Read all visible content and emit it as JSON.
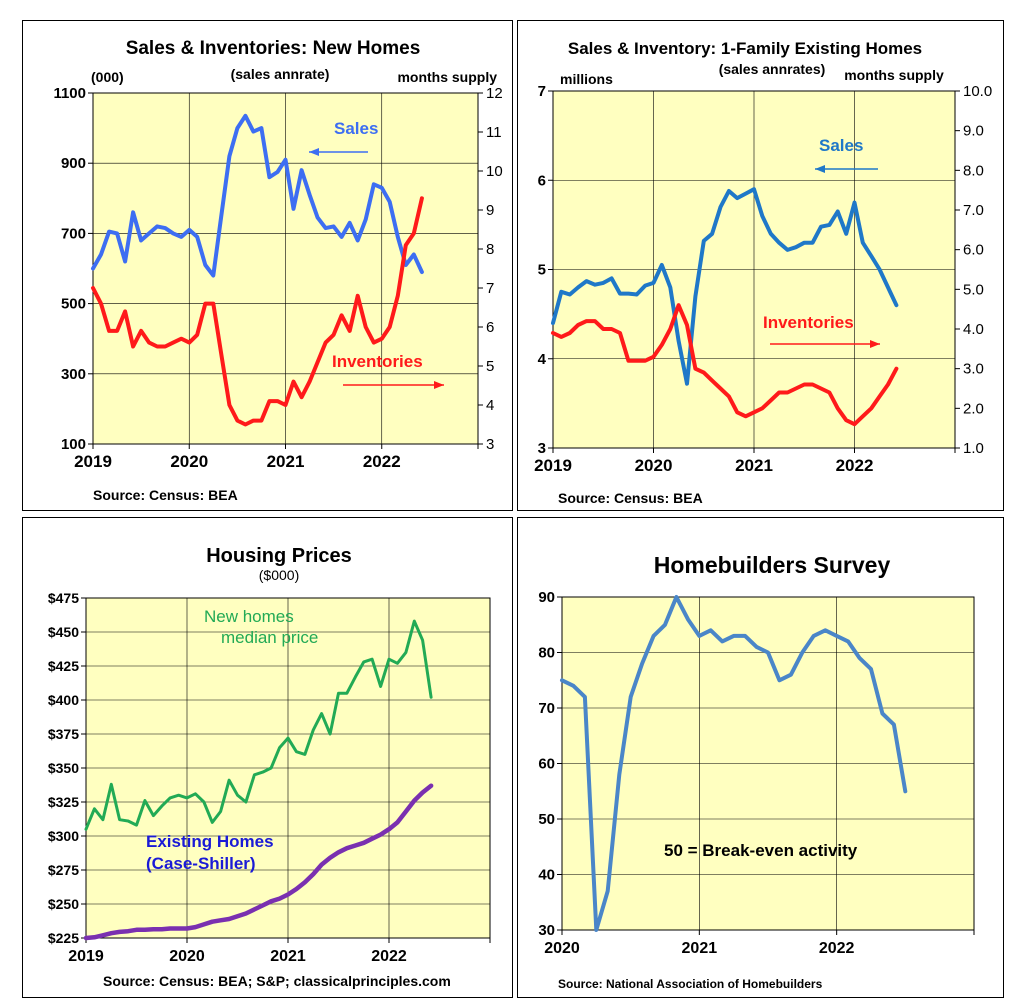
{
  "chart_data": [
    {
      "type": "line",
      "title": "Sales & Inventories:  New Homes",
      "left_unit": "(000)",
      "subtitle": "(sales annrate)",
      "right_unit": "months supply",
      "source": "Source: Census: BEA",
      "x_ticks": [
        "2019",
        "2020",
        "2021",
        "2022"
      ],
      "xlim": [
        2019,
        2023
      ],
      "y_left": {
        "lim": [
          100,
          1100
        ],
        "ticks": [
          "1100",
          "900",
          "700",
          "500",
          "300",
          "100"
        ]
      },
      "y_right": {
        "lim": [
          3,
          12
        ],
        "ticks": [
          "12",
          "11",
          "10",
          "9",
          "8",
          "7",
          "6",
          "5",
          "4",
          "3"
        ]
      },
      "series": [
        {
          "name": "Sales",
          "axis": "left",
          "color": "#3d6ef2",
          "x": [
            2019.0,
            2019.083,
            2019.167,
            2019.25,
            2019.333,
            2019.417,
            2019.5,
            2019.583,
            2019.667,
            2019.75,
            2019.833,
            2019.917,
            2020.0,
            2020.083,
            2020.167,
            2020.25,
            2020.333,
            2020.417,
            2020.5,
            2020.583,
            2020.667,
            2020.75,
            2020.833,
            2020.917,
            2021.0,
            2021.083,
            2021.167,
            2021.25,
            2021.333,
            2021.417,
            2021.5,
            2021.583,
            2021.667,
            2021.75,
            2021.833,
            2021.917,
            2022.0,
            2022.083,
            2022.167,
            2022.25,
            2022.333,
            2022.417
          ],
          "values": [
            600,
            640,
            705,
            700,
            620,
            760,
            680,
            700,
            720,
            715,
            700,
            690,
            710,
            690,
            610,
            580,
            750,
            920,
            1000,
            1035,
            990,
            1000,
            860,
            875,
            910,
            770,
            880,
            810,
            745,
            715,
            720,
            690,
            730,
            680,
            740,
            840,
            830,
            790,
            690,
            610,
            640,
            590
          ]
        },
        {
          "name": "Inventories",
          "axis": "right",
          "color": "#ff1a1a",
          "x": [
            2019.0,
            2019.083,
            2019.167,
            2019.25,
            2019.333,
            2019.417,
            2019.5,
            2019.583,
            2019.667,
            2019.75,
            2019.833,
            2019.917,
            2020.0,
            2020.083,
            2020.167,
            2020.25,
            2020.333,
            2020.417,
            2020.5,
            2020.583,
            2020.667,
            2020.75,
            2020.833,
            2020.917,
            2021.0,
            2021.083,
            2021.167,
            2021.25,
            2021.333,
            2021.417,
            2021.5,
            2021.583,
            2021.667,
            2021.75,
            2021.833,
            2021.917,
            2022.0,
            2022.083,
            2022.167,
            2022.25,
            2022.333,
            2022.417
          ],
          "values": [
            7.0,
            6.6,
            5.9,
            5.9,
            6.4,
            5.5,
            5.9,
            5.6,
            5.5,
            5.5,
            5.6,
            5.7,
            5.6,
            5.8,
            6.6,
            6.6,
            5.3,
            4.0,
            3.6,
            3.5,
            3.6,
            3.6,
            4.1,
            4.1,
            4.0,
            4.6,
            4.2,
            4.6,
            5.1,
            5.6,
            5.8,
            6.3,
            5.9,
            6.8,
            6.0,
            5.6,
            5.7,
            6.0,
            6.8,
            8.1,
            8.4,
            9.3
          ]
        }
      ],
      "annotations": [
        {
          "text": "Sales",
          "color": "#3d6ef2",
          "arrow": "left"
        },
        {
          "text": "Inventories",
          "color": "#ff1a1a",
          "arrow": "right"
        }
      ],
      "grid": true
    },
    {
      "type": "line",
      "title": "Sales & Inventory: 1-Family Existing Homes",
      "left_unit": "millions",
      "subtitle": "(sales annrates)",
      "right_unit": "months supply",
      "source": "Source: Census: BEA",
      "x_ticks": [
        "2019",
        "2020",
        "2021",
        "2022"
      ],
      "xlim": [
        2019,
        2023
      ],
      "y_left": {
        "lim": [
          3,
          7
        ],
        "ticks": [
          "7",
          "6",
          "5",
          "4",
          "3"
        ]
      },
      "y_right": {
        "lim": [
          1.0,
          10.0
        ],
        "ticks": [
          "10.0",
          "9.0",
          "8.0",
          "7.0",
          "6.0",
          "5.0",
          "4.0",
          "3.0",
          "2.0",
          "1.0"
        ]
      },
      "series": [
        {
          "name": "Sales",
          "axis": "left",
          "color": "#1f78c8",
          "x": [
            2019.0,
            2019.083,
            2019.167,
            2019.25,
            2019.333,
            2019.417,
            2019.5,
            2019.583,
            2019.667,
            2019.75,
            2019.833,
            2019.917,
            2020.0,
            2020.083,
            2020.167,
            2020.25,
            2020.333,
            2020.417,
            2020.5,
            2020.583,
            2020.667,
            2020.75,
            2020.833,
            2020.917,
            2021.0,
            2021.083,
            2021.167,
            2021.25,
            2021.333,
            2021.417,
            2021.5,
            2021.583,
            2021.667,
            2021.75,
            2021.833,
            2021.917,
            2022.0,
            2022.083,
            2022.167,
            2022.25,
            2022.333,
            2022.417
          ],
          "values": [
            4.4,
            4.75,
            4.72,
            4.8,
            4.87,
            4.83,
            4.85,
            4.9,
            4.73,
            4.73,
            4.72,
            4.82,
            4.85,
            5.05,
            4.8,
            4.2,
            3.72,
            4.7,
            5.32,
            5.4,
            5.7,
            5.88,
            5.8,
            5.85,
            5.9,
            5.6,
            5.4,
            5.3,
            5.22,
            5.25,
            5.3,
            5.3,
            5.48,
            5.5,
            5.65,
            5.4,
            5.75,
            5.3,
            5.15,
            5.0,
            4.8,
            4.6
          ]
        },
        {
          "name": "Inventories",
          "axis": "right",
          "color": "#ff1a1a",
          "x": [
            2019.0,
            2019.083,
            2019.167,
            2019.25,
            2019.333,
            2019.417,
            2019.5,
            2019.583,
            2019.667,
            2019.75,
            2019.833,
            2019.917,
            2020.0,
            2020.083,
            2020.167,
            2020.25,
            2020.333,
            2020.417,
            2020.5,
            2020.583,
            2020.667,
            2020.75,
            2020.833,
            2020.917,
            2021.0,
            2021.083,
            2021.167,
            2021.25,
            2021.333,
            2021.417,
            2021.5,
            2021.583,
            2021.667,
            2021.75,
            2021.833,
            2021.917,
            2022.0,
            2022.083,
            2022.167,
            2022.25,
            2022.333,
            2022.417
          ],
          "values": [
            3.9,
            3.8,
            3.9,
            4.1,
            4.2,
            4.2,
            4.0,
            4.0,
            3.9,
            3.2,
            3.2,
            3.2,
            3.3,
            3.6,
            4.0,
            4.6,
            4.1,
            3.0,
            2.9,
            2.7,
            2.5,
            2.3,
            1.9,
            1.8,
            1.9,
            2.0,
            2.2,
            2.4,
            2.4,
            2.5,
            2.6,
            2.6,
            2.5,
            2.4,
            2.0,
            1.7,
            1.6,
            1.8,
            2.0,
            2.3,
            2.6,
            3.0
          ]
        }
      ],
      "annotations": [
        {
          "text": "Sales",
          "color": "#1f78c8",
          "arrow": "left"
        },
        {
          "text": "Inventories",
          "color": "#ff1a1a",
          "arrow": "right"
        }
      ],
      "grid": true
    },
    {
      "type": "line",
      "title": "Housing Prices",
      "subtitle": "($000)",
      "source": "Source: Census: BEA; S&P; classicalprinciples.com",
      "x_ticks": [
        "2019",
        "2020",
        "2021",
        "2022"
      ],
      "xlim": [
        2019,
        2023
      ],
      "y_left": {
        "lim": [
          225,
          475
        ],
        "ticks": [
          "$475",
          "$450",
          "$425",
          "$400",
          "$375",
          "$350",
          "$325",
          "$300",
          "$275",
          "$250",
          "$225"
        ]
      },
      "series": [
        {
          "name": "New homes median price",
          "axis": "left",
          "color": "#22aa55",
          "x": [
            2019.0,
            2019.083,
            2019.167,
            2019.25,
            2019.333,
            2019.417,
            2019.5,
            2019.583,
            2019.667,
            2019.75,
            2019.833,
            2019.917,
            2020.0,
            2020.083,
            2020.167,
            2020.25,
            2020.333,
            2020.417,
            2020.5,
            2020.583,
            2020.667,
            2020.75,
            2020.833,
            2020.917,
            2021.0,
            2021.083,
            2021.167,
            2021.25,
            2021.333,
            2021.417,
            2021.5,
            2021.583,
            2021.667,
            2021.75,
            2021.833,
            2021.917,
            2022.0,
            2022.083,
            2022.167,
            2022.25,
            2022.333,
            2022.417
          ],
          "values": [
            305,
            320,
            312,
            338,
            312,
            311,
            308,
            326,
            315,
            322,
            328,
            330,
            328,
            331,
            325,
            310,
            318,
            341,
            330,
            325,
            345,
            347,
            350,
            365,
            372,
            362,
            360,
            378,
            390,
            375,
            405,
            405,
            417,
            428,
            430,
            410,
            430,
            427,
            435,
            458,
            444,
            402
          ]
        },
        {
          "name": "Existing Homes (Case-Shiller)",
          "axis": "left",
          "color": "#7a30b0",
          "x": [
            2019.0,
            2019.083,
            2019.167,
            2019.25,
            2019.333,
            2019.417,
            2019.5,
            2019.583,
            2019.667,
            2019.75,
            2019.833,
            2019.917,
            2020.0,
            2020.083,
            2020.167,
            2020.25,
            2020.333,
            2020.417,
            2020.5,
            2020.583,
            2020.667,
            2020.75,
            2020.833,
            2020.917,
            2021.0,
            2021.083,
            2021.167,
            2021.25,
            2021.333,
            2021.417,
            2021.5,
            2021.583,
            2021.667,
            2021.75,
            2021.833,
            2021.917,
            2022.0,
            2022.083,
            2022.167,
            2022.25,
            2022.333,
            2022.417
          ],
          "values": [
            225,
            225.5,
            227,
            228.5,
            229.5,
            230,
            231,
            231,
            231.5,
            231.5,
            232,
            232,
            232,
            233,
            235,
            237,
            238,
            239,
            241,
            243,
            246,
            249,
            252,
            254,
            257,
            261,
            266,
            272,
            279,
            284,
            288,
            291,
            293,
            295,
            298,
            301,
            305,
            310,
            318,
            326,
            332,
            337
          ]
        }
      ],
      "annotations": [
        {
          "text": "New homes",
          "color": "#22aa55"
        },
        {
          "text": "median price",
          "color": "#22aa55"
        },
        {
          "text": "Existing Homes",
          "color": "#1a1ad6"
        },
        {
          "text": "(Case-Shiller)",
          "color": "#1a1ad6"
        }
      ],
      "grid": true
    },
    {
      "type": "line",
      "title": "Homebuilders Survey",
      "source": "Source: National Association of Homebuilders",
      "x_ticks": [
        "2020",
        "2021",
        "2022"
      ],
      "xlim": [
        2020,
        2023
      ],
      "y_left": {
        "lim": [
          30,
          90
        ],
        "ticks": [
          "90",
          "80",
          "70",
          "60",
          "50",
          "40",
          "30"
        ]
      },
      "series": [
        {
          "name": "Homebuilders Survey",
          "axis": "left",
          "color": "#4a86c8",
          "x": [
            2020.0,
            2020.083,
            2020.167,
            2020.25,
            2020.333,
            2020.417,
            2020.5,
            2020.583,
            2020.667,
            2020.75,
            2020.833,
            2020.917,
            2021.0,
            2021.083,
            2021.167,
            2021.25,
            2021.333,
            2021.417,
            2021.5,
            2021.583,
            2021.667,
            2021.75,
            2021.833,
            2021.917,
            2022.0,
            2022.083,
            2022.167,
            2022.25,
            2022.333,
            2022.417,
            2022.5
          ],
          "values": [
            75,
            74,
            72,
            30,
            37,
            58,
            72,
            78,
            83,
            85,
            90,
            86,
            83,
            84,
            82,
            83,
            83,
            81,
            80,
            75,
            76,
            80,
            83,
            84,
            83,
            82,
            79,
            77,
            69,
            67,
            55
          ]
        }
      ],
      "annotations": [
        {
          "text": "50 = Break-even activity",
          "color": "#000000"
        }
      ],
      "grid": true
    }
  ]
}
